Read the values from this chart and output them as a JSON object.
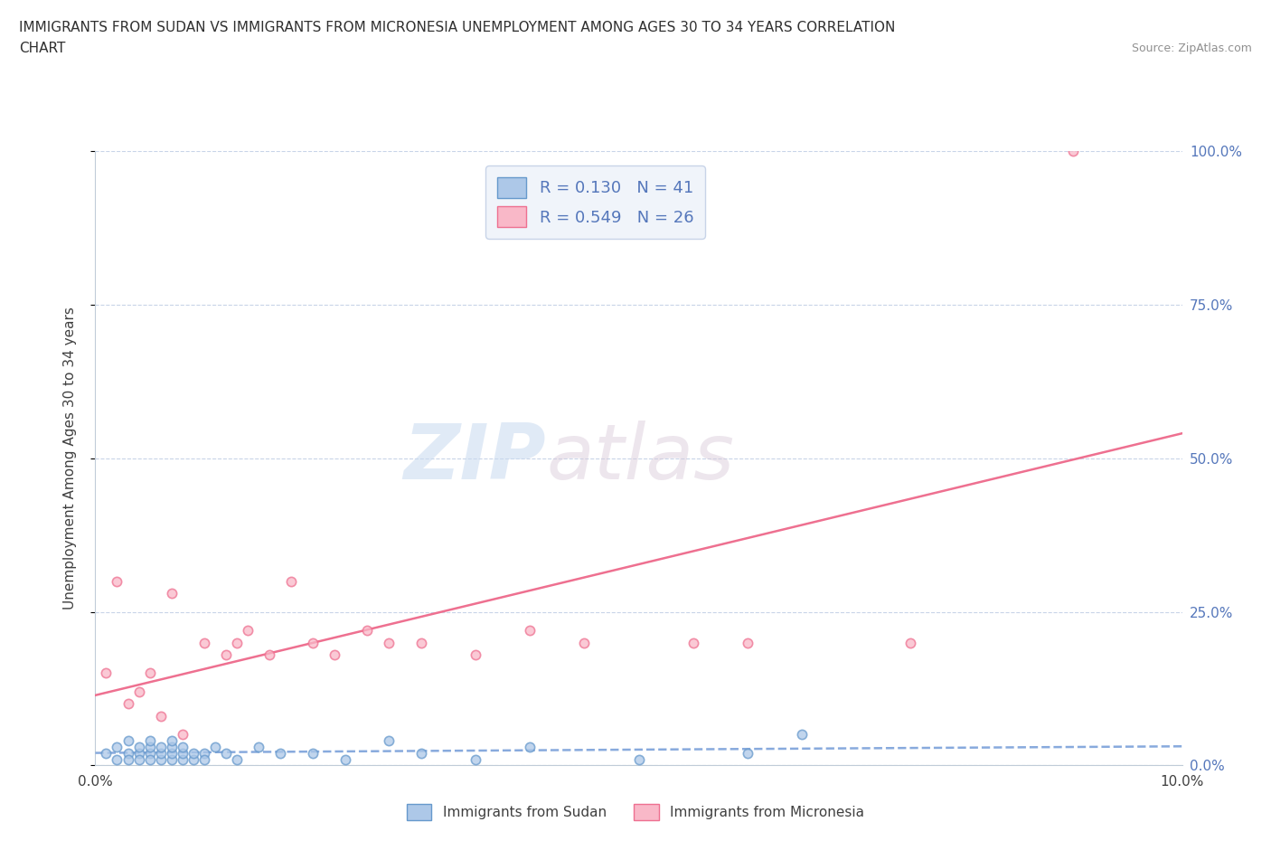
{
  "title_line1": "IMMIGRANTS FROM SUDAN VS IMMIGRANTS FROM MICRONESIA UNEMPLOYMENT AMONG AGES 30 TO 34 YEARS CORRELATION",
  "title_line2": "CHART",
  "source_text": "Source: ZipAtlas.com",
  "ylabel": "Unemployment Among Ages 30 to 34 years",
  "xlabel_sudan": "Immigrants from Sudan",
  "xlabel_micronesia": "Immigrants from Micronesia",
  "watermark_zip": "ZIP",
  "watermark_atlas": "atlas",
  "sudan_R": 0.13,
  "sudan_N": 41,
  "micronesia_R": 0.549,
  "micronesia_N": 26,
  "sudan_color": "#adc8e8",
  "sudan_edge_color": "#6699cc",
  "micronesia_color": "#f9b8c8",
  "micronesia_edge_color": "#ee7090",
  "sudan_line_color": "#88aadd",
  "micronesia_line_color": "#ee7090",
  "xlim": [
    0.0,
    0.1
  ],
  "ylim": [
    0.0,
    1.0
  ],
  "yticks": [
    0.0,
    0.25,
    0.5,
    0.75,
    1.0
  ],
  "xticks": [
    0.0,
    0.02,
    0.04,
    0.06,
    0.08,
    0.1
  ],
  "ytick_labels": [
    "0.0%",
    "25.0%",
    "50.0%",
    "75.0%",
    "100.0%"
  ],
  "grid_color": "#c8d4e8",
  "background_color": "#ffffff",
  "legend_box_color": "#f0f4fa",
  "legend_edge_color": "#c8d4e8",
  "sudan_x": [
    0.001,
    0.002,
    0.002,
    0.003,
    0.003,
    0.003,
    0.004,
    0.004,
    0.004,
    0.005,
    0.005,
    0.005,
    0.005,
    0.006,
    0.006,
    0.006,
    0.007,
    0.007,
    0.007,
    0.007,
    0.008,
    0.008,
    0.008,
    0.009,
    0.009,
    0.01,
    0.01,
    0.011,
    0.012,
    0.013,
    0.015,
    0.017,
    0.02,
    0.023,
    0.027,
    0.03,
    0.035,
    0.04,
    0.05,
    0.06,
    0.065
  ],
  "sudan_y": [
    0.02,
    0.01,
    0.03,
    0.02,
    0.01,
    0.04,
    0.02,
    0.01,
    0.03,
    0.02,
    0.01,
    0.03,
    0.04,
    0.01,
    0.02,
    0.03,
    0.01,
    0.02,
    0.03,
    0.04,
    0.01,
    0.02,
    0.03,
    0.01,
    0.02,
    0.02,
    0.01,
    0.03,
    0.02,
    0.01,
    0.03,
    0.02,
    0.02,
    0.01,
    0.04,
    0.02,
    0.01,
    0.03,
    0.01,
    0.02,
    0.05
  ],
  "micronesia_x": [
    0.001,
    0.002,
    0.003,
    0.004,
    0.005,
    0.006,
    0.007,
    0.008,
    0.01,
    0.012,
    0.013,
    0.014,
    0.016,
    0.018,
    0.02,
    0.022,
    0.025,
    0.027,
    0.03,
    0.035,
    0.04,
    0.045,
    0.055,
    0.06,
    0.075,
    0.09
  ],
  "micronesia_y": [
    0.15,
    0.3,
    0.1,
    0.12,
    0.15,
    0.08,
    0.28,
    0.05,
    0.2,
    0.18,
    0.2,
    0.22,
    0.18,
    0.3,
    0.2,
    0.18,
    0.22,
    0.2,
    0.2,
    0.18,
    0.22,
    0.2,
    0.2,
    0.2,
    0.2,
    1.0
  ]
}
